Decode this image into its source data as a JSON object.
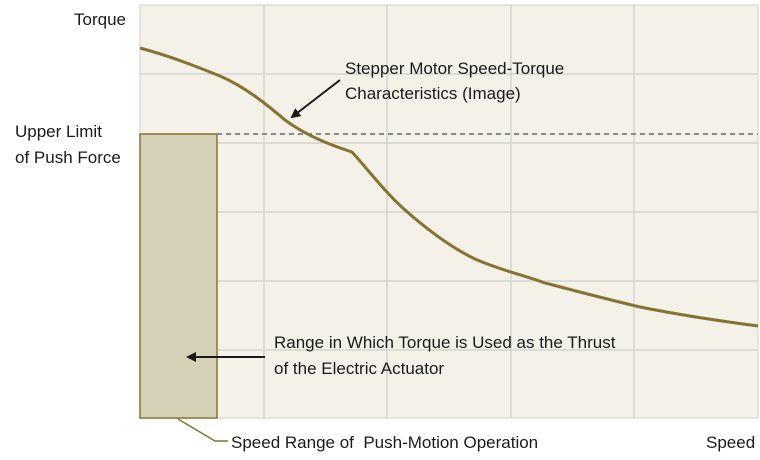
{
  "axes": {
    "y_label": "Torque",
    "x_label": "Speed"
  },
  "limit": {
    "line1": "Upper Limit",
    "line2": "of Push Force"
  },
  "curve_callout": {
    "line1": "Stepper Motor Speed-Torque",
    "line2": "Characteristics (Image)"
  },
  "thrust_callout": {
    "line1": "Range in Which Torque is Used as the Thrust",
    "line2": "of the Electric Actuator"
  },
  "speed_range_label": "Speed Range of  Push-Motion Operation",
  "colors": {
    "background": "#f3f1e8",
    "grid": "#cfcfcb",
    "curve": "#857430",
    "bar_fill": "#d5d2b8",
    "bar_stroke": "#857430",
    "limit_line": "#8c8c8c",
    "arrow": "#1a1a1a"
  }
}
